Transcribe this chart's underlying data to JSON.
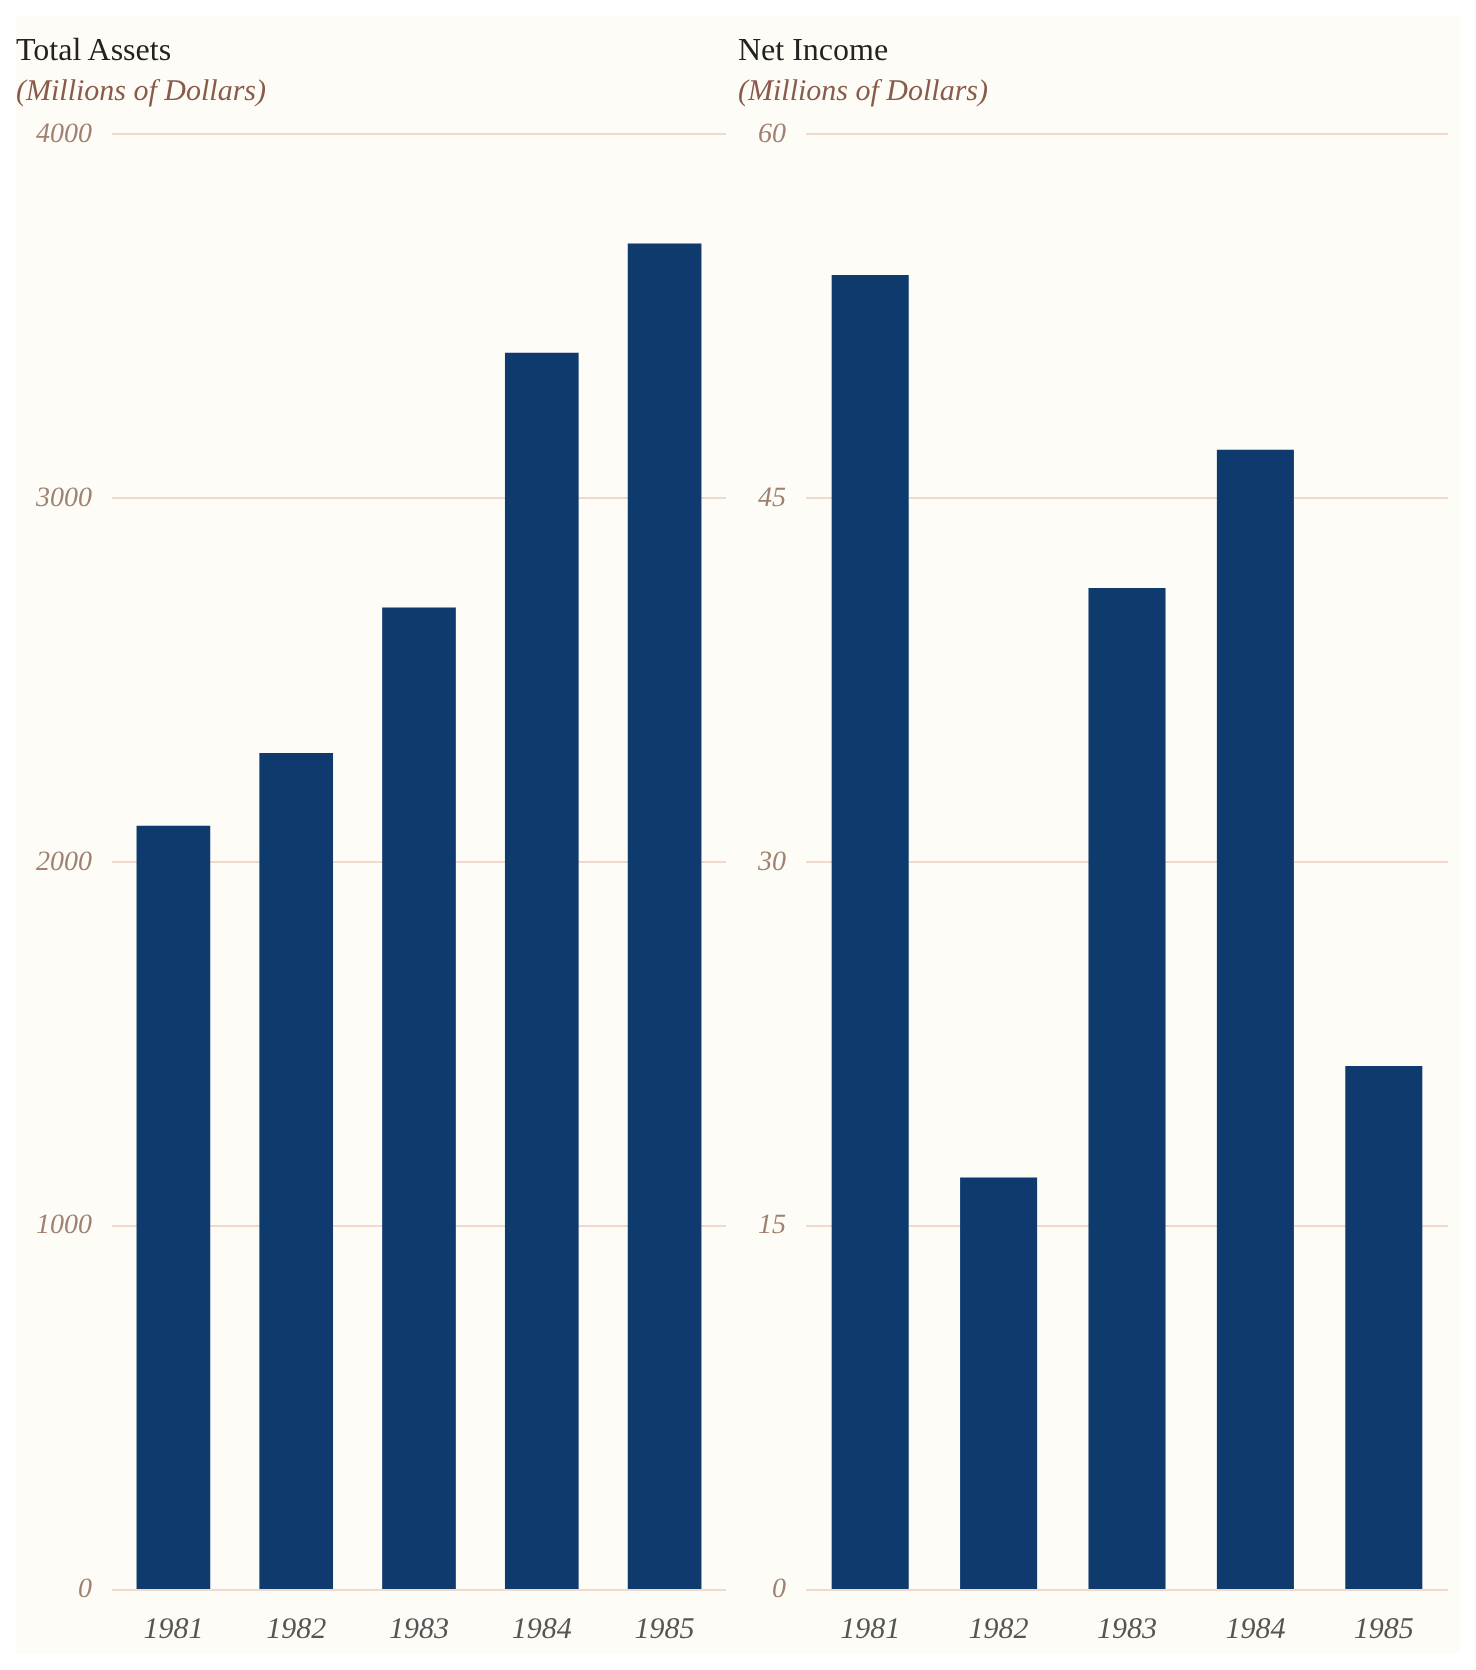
{
  "chart_data": [
    {
      "type": "bar",
      "title": "Total Assets",
      "subtitle": "(Millions of Dollars)",
      "categories": [
        "1981",
        "1982",
        "1983",
        "1984",
        "1985"
      ],
      "values": [
        2100,
        2300,
        2700,
        3400,
        3700
      ],
      "color": "#0f3a6e",
      "ylim": [
        0,
        4000
      ],
      "yticks": [
        0,
        1000,
        2000,
        3000,
        4000
      ],
      "grid": "y"
    },
    {
      "type": "bar",
      "title": "Net Income",
      "subtitle": "(Millions of Dollars)",
      "categories": [
        "1981",
        "1982",
        "1983",
        "1984",
        "1985"
      ],
      "values": [
        54.2,
        17,
        41.3,
        47,
        21.6
      ],
      "color": "#0f3a6e",
      "ylim": [
        0,
        60
      ],
      "yticks": [
        0,
        15,
        30,
        45,
        60
      ],
      "grid": "y"
    }
  ]
}
